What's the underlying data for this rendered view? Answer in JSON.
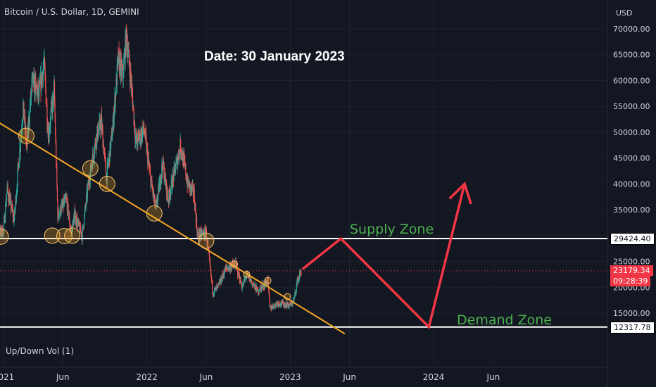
{
  "header": {
    "title": "Bitcoin / U.S. Dollar, 1D, GEMINI",
    "currency": "USD",
    "volume_label": "Up/Down Vol (1)"
  },
  "annotations": {
    "date_text": "Date: 30 January 2023",
    "supply_zone": "Supply Zone",
    "demand_zone": "Demand Zone"
  },
  "price_tags": {
    "supply_level": "29424.40",
    "current_price": "23179.34",
    "countdown": "09:28:39",
    "demand_level": "12317.78"
  },
  "colors": {
    "background": "#131722",
    "candle_up": "#26a69a",
    "candle_down": "#ef5350",
    "trendline": "#f5a623",
    "arrow": "#f23645",
    "zone_text": "#4caf50",
    "level_line": "#ffffff"
  },
  "chart_data": {
    "type": "candlestick",
    "symbol": "Bitcoin / U.S. Dollar",
    "interval": "1D",
    "exchange": "GEMINI",
    "y_axis": {
      "label": "USD",
      "ticks": [
        15000,
        20000,
        25000,
        30000,
        35000,
        40000,
        45000,
        50000,
        55000,
        60000,
        65000,
        70000
      ],
      "tick_labels": [
        "15000.00",
        "20000.00",
        "25000.00",
        "30000.00",
        "35000.00",
        "40000.00",
        "45000.00",
        "50000.00",
        "55000.00",
        "60000.00",
        "65000.00",
        "70000.00"
      ],
      "range": [
        11000,
        71000
      ]
    },
    "x_axis": {
      "ticks": [
        "2021-01-01",
        "2021-06-01",
        "2022-01-01",
        "2022-06-01",
        "2023-01-01",
        "2023-06-01",
        "2024-01-01",
        "2024-06-01"
      ],
      "tick_labels": [
        "2021",
        "Jun",
        "2022",
        "Jun",
        "2023",
        "Jun",
        "2024",
        "Jun"
      ],
      "range": [
        "2020-12-01",
        "2024-09-10"
      ]
    },
    "price_path": [
      [
        "2020-12-01",
        29500
      ],
      [
        "2021-01-01",
        31000
      ],
      [
        "2021-01-10",
        39000
      ],
      [
        "2021-01-28",
        33000
      ],
      [
        "2021-02-20",
        55000
      ],
      [
        "2021-03-01",
        47000
      ],
      [
        "2021-03-15",
        60000
      ],
      [
        "2021-04-01",
        57000
      ],
      [
        "2021-04-14",
        63500
      ],
      [
        "2021-04-25",
        49500
      ],
      [
        "2021-05-10",
        58000
      ],
      [
        "2021-05-19",
        34000
      ],
      [
        "2021-06-10",
        37000
      ],
      [
        "2021-06-22",
        30500
      ],
      [
        "2021-07-01",
        34000
      ],
      [
        "2021-07-20",
        30000
      ],
      [
        "2021-08-05",
        40000
      ],
      [
        "2021-08-25",
        49000
      ],
      [
        "2021-09-07",
        52000
      ],
      [
        "2021-09-20",
        41000
      ],
      [
        "2021-10-05",
        50000
      ],
      [
        "2021-10-20",
        64000
      ],
      [
        "2021-11-01",
        61000
      ],
      [
        "2021-11-10",
        69000
      ],
      [
        "2021-11-25",
        57000
      ],
      [
        "2021-12-04",
        48000
      ],
      [
        "2021-12-25",
        50500
      ],
      [
        "2022-01-10",
        41000
      ],
      [
        "2022-01-24",
        35000
      ],
      [
        "2022-02-10",
        44000
      ],
      [
        "2022-02-24",
        37000
      ],
      [
        "2022-03-28",
        47500
      ],
      [
        "2022-04-15",
        40000
      ],
      [
        "2022-05-01",
        38000
      ],
      [
        "2022-05-10",
        30000
      ],
      [
        "2022-06-01",
        30500
      ],
      [
        "2022-06-18",
        19000
      ],
      [
        "2022-07-01",
        20000
      ],
      [
        "2022-07-20",
        23500
      ],
      [
        "2022-08-14",
        24500
      ],
      [
        "2022-09-01",
        20000
      ],
      [
        "2022-09-12",
        22500
      ],
      [
        "2022-10-10",
        19200
      ],
      [
        "2022-11-05",
        21300
      ],
      [
        "2022-11-10",
        16000
      ],
      [
        "2022-12-01",
        17000
      ],
      [
        "2022-12-31",
        16500
      ],
      [
        "2023-01-10",
        17400
      ],
      [
        "2023-01-20",
        21500
      ],
      [
        "2023-01-30",
        23179.34
      ]
    ],
    "horizontal_levels": [
      {
        "label": "Supply Zone",
        "value": 29424.4
      },
      {
        "label": "Demand Zone",
        "value": 12317.78
      }
    ],
    "current_price": 23179.34,
    "trendline": [
      [
        "2020-11-15",
        53500
      ],
      [
        "2023-05-20",
        11000
      ]
    ],
    "touch_points": [
      [
        "2020-12-25",
        29800
      ],
      [
        "2021-02-28",
        49300
      ],
      [
        "2021-05-05",
        30000
      ],
      [
        "2021-06-05",
        29900
      ],
      [
        "2021-06-25",
        30000
      ],
      [
        "2021-08-10",
        43000
      ],
      [
        "2021-09-22",
        40000
      ],
      [
        "2022-01-20",
        34300
      ],
      [
        "2022-06-01",
        29000
      ],
      [
        "2022-08-12",
        24500
      ],
      [
        "2022-09-12",
        22500
      ],
      [
        "2022-11-05",
        21300
      ],
      [
        "2022-12-25",
        18200
      ]
    ],
    "projection_path": [
      [
        "2023-02-01",
        23500
      ],
      [
        "2023-05-10",
        29424.4
      ],
      [
        "2023-12-20",
        12317.78
      ],
      [
        "2024-03-20",
        40000
      ]
    ]
  }
}
